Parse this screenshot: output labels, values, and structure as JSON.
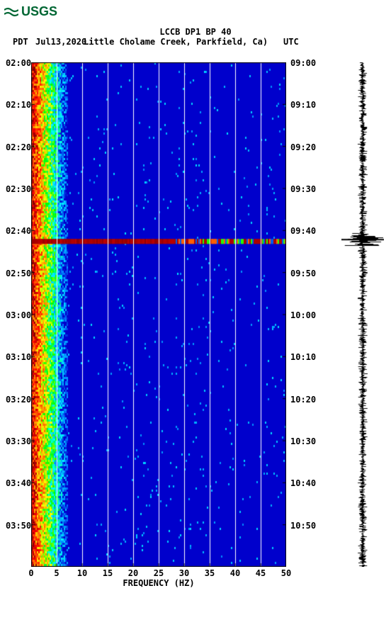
{
  "logo": {
    "text": "USGS",
    "color": "#006633"
  },
  "title": "LCCB DP1 BP 40",
  "header": {
    "left_tz": "PDT",
    "date": "Jul13,2020",
    "subtitle": "Little Cholame Creek, Parkfield, Ca)",
    "right_tz": "UTC"
  },
  "spectrogram": {
    "type": "spectrogram",
    "background_color": "#ffffff",
    "plot_bg": "#0000cc",
    "x": {
      "label": "FREQUENCY (HZ)",
      "lim": [
        0,
        50
      ],
      "ticks": [
        0,
        5,
        10,
        15,
        20,
        25,
        30,
        35,
        40,
        45,
        50
      ],
      "tick_labels": [
        "0",
        "5",
        "10",
        "15",
        "20",
        "25",
        "30",
        "35",
        "40",
        "45",
        "50"
      ]
    },
    "y_left": {
      "ticks_minutes": [
        0,
        10,
        20,
        30,
        40,
        50,
        60,
        70,
        80,
        90,
        100,
        110
      ],
      "tick_labels": [
        "02:00",
        "02:10",
        "02:20",
        "02:30",
        "02:40",
        "02:50",
        "03:00",
        "03:10",
        "03:20",
        "03:30",
        "03:40",
        "03:50"
      ]
    },
    "y_right": {
      "tick_labels": [
        "09:00",
        "09:10",
        "09:20",
        "09:30",
        "09:40",
        "09:50",
        "10:00",
        "10:10",
        "10:20",
        "10:30",
        "10:40",
        "10:50"
      ]
    },
    "grid_color": "#ffffff",
    "vlines_hz": [
      5,
      10,
      15,
      20,
      25,
      30,
      35,
      40,
      45
    ],
    "colormap": [
      "#800000",
      "#ff0000",
      "#ff7f00",
      "#ffff00",
      "#00ff00",
      "#00ffff",
      "#0080ff",
      "#0000cc"
    ],
    "low_freq_band_hz": 7,
    "event": {
      "minute": 42,
      "width_minutes": 1.2,
      "full_intensity_hz": 28,
      "speckle_until_hz": 50
    }
  },
  "waveform": {
    "color": "#000000",
    "baseline_x": 0.5,
    "noise_amp": 0.25,
    "event_minute": 42,
    "event_amp": 1.0
  }
}
